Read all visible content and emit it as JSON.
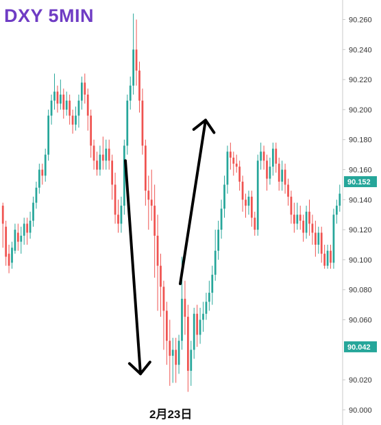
{
  "title": "DXY 5MIN",
  "date_label": "2月23日",
  "colors": {
    "up": "#26a69a",
    "down": "#ef5350",
    "title": "#6f3cc4",
    "badge": "#26a69a",
    "axis": "#c8c8c8",
    "arrow": "#000000"
  },
  "chart_data": {
    "type": "candlestick",
    "title": "DXY 5MIN",
    "xlabel": "2月23日",
    "ylabel": "",
    "ylim": [
      89.996,
      90.266
    ],
    "y_ticks": [
      "90.260",
      "90.240",
      "90.220",
      "90.200",
      "90.180",
      "90.160",
      "90.140",
      "90.120",
      "90.100",
      "90.080",
      "90.060",
      "90.020",
      "90.000"
    ],
    "price_badges": [
      {
        "label": "90.152",
        "value": 90.152
      },
      {
        "label": "90.042",
        "value": 90.042
      }
    ],
    "annotations": [
      {
        "type": "arrow",
        "direction": "down",
        "from": 90.166,
        "to": 90.024
      },
      {
        "type": "arrow",
        "direction": "up",
        "from": 90.084,
        "to": 90.193
      }
    ],
    "candles": [
      [
        90.136,
        90.124,
        90.138,
        90.108
      ],
      [
        90.122,
        90.102,
        90.126,
        90.096
      ],
      [
        90.104,
        90.096,
        90.11,
        90.091
      ],
      [
        90.098,
        90.108,
        90.112,
        90.094
      ],
      [
        90.106,
        90.12,
        90.124,
        90.104
      ],
      [
        90.118,
        90.112,
        90.124,
        90.106
      ],
      [
        90.112,
        90.116,
        90.122,
        90.104
      ],
      [
        90.116,
        90.124,
        90.128,
        90.11
      ],
      [
        90.124,
        90.118,
        90.128,
        90.11
      ],
      [
        90.118,
        90.126,
        90.132,
        90.114
      ],
      [
        90.126,
        90.138,
        90.142,
        90.122
      ],
      [
        90.138,
        90.148,
        90.152,
        90.134
      ],
      [
        90.148,
        90.16,
        90.164,
        90.144
      ],
      [
        90.16,
        90.156,
        90.164,
        90.15
      ],
      [
        90.156,
        90.17,
        90.174,
        90.152
      ],
      [
        90.17,
        90.196,
        90.2,
        90.166
      ],
      [
        90.196,
        90.206,
        90.21,
        90.19
      ],
      [
        90.206,
        90.212,
        90.224,
        90.2
      ],
      [
        90.212,
        90.204,
        90.216,
        90.198
      ],
      [
        90.204,
        90.21,
        90.22,
        90.2
      ],
      [
        90.21,
        90.2,
        90.214,
        90.194
      ],
      [
        90.2,
        90.206,
        90.212,
        90.196
      ],
      [
        90.206,
        90.196,
        90.21,
        90.19
      ],
      [
        90.196,
        90.19,
        90.2,
        90.184
      ],
      [
        90.19,
        90.196,
        90.202,
        90.186
      ],
      [
        90.196,
        90.206,
        90.21,
        90.188
      ],
      [
        90.206,
        90.218,
        90.222,
        90.2
      ],
      [
        90.218,
        90.21,
        90.224,
        90.204
      ],
      [
        90.21,
        90.196,
        90.214,
        90.186
      ],
      [
        90.196,
        90.176,
        90.2,
        90.168
      ],
      [
        90.176,
        90.166,
        90.18,
        90.16
      ],
      [
        90.166,
        90.16,
        90.172,
        90.156
      ],
      [
        90.16,
        90.17,
        90.176,
        90.156
      ],
      [
        90.17,
        90.166,
        90.182,
        90.16
      ],
      [
        90.166,
        90.174,
        90.18,
        90.16
      ],
      [
        90.174,
        90.166,
        90.18,
        90.16
      ],
      [
        90.166,
        90.15,
        90.17,
        90.14
      ],
      [
        90.15,
        90.13,
        90.158,
        90.124
      ],
      [
        90.13,
        90.124,
        90.14,
        90.118
      ],
      [
        90.124,
        90.136,
        90.142,
        90.118
      ],
      [
        90.136,
        90.176,
        90.18,
        90.13
      ],
      [
        90.176,
        90.206,
        90.21,
        90.17
      ],
      [
        90.206,
        90.216,
        90.222,
        90.2
      ],
      [
        90.216,
        90.24,
        90.264,
        90.21
      ],
      [
        90.24,
        90.226,
        90.26,
        90.216
      ],
      [
        90.226,
        90.206,
        90.232,
        90.198
      ],
      [
        90.206,
        90.176,
        90.214,
        90.17
      ],
      [
        90.176,
        90.146,
        90.18,
        90.136
      ],
      [
        90.146,
        90.14,
        90.156,
        90.12
      ],
      [
        90.14,
        90.136,
        90.16,
        90.126
      ],
      [
        90.136,
        90.116,
        90.15,
        90.088
      ],
      [
        90.116,
        90.096,
        90.13,
        90.066
      ],
      [
        90.096,
        90.082,
        90.104,
        90.062
      ],
      [
        90.082,
        90.066,
        90.086,
        90.04
      ],
      [
        90.066,
        90.046,
        90.072,
        90.03
      ],
      [
        90.046,
        90.036,
        90.06,
        90.016
      ],
      [
        90.036,
        90.04,
        90.048,
        90.018
      ],
      [
        90.04,
        90.03,
        90.048,
        90.018
      ],
      [
        90.03,
        90.046,
        90.05,
        90.024
      ],
      [
        90.046,
        90.074,
        90.102,
        90.04
      ],
      [
        90.074,
        90.062,
        90.086,
        90.05
      ],
      [
        90.062,
        90.026,
        90.07,
        90.012
      ],
      [
        90.026,
        90.04,
        90.046,
        90.016
      ],
      [
        90.04,
        90.064,
        90.068,
        90.034
      ],
      [
        90.064,
        90.05,
        90.07,
        90.042
      ],
      [
        90.05,
        90.06,
        90.068,
        90.044
      ],
      [
        90.06,
        90.064,
        90.072,
        90.052
      ],
      [
        90.064,
        90.072,
        90.078,
        90.06
      ],
      [
        90.072,
        90.078,
        90.086,
        90.066
      ],
      [
        90.078,
        90.09,
        90.096,
        90.07
      ],
      [
        90.09,
        90.106,
        90.12,
        90.086
      ],
      [
        90.106,
        90.12,
        90.126,
        90.1
      ],
      [
        90.12,
        90.134,
        90.14,
        90.114
      ],
      [
        90.134,
        90.15,
        90.156,
        90.128
      ],
      [
        90.15,
        90.172,
        90.176,
        90.144
      ],
      [
        90.172,
        90.168,
        90.178,
        90.16
      ],
      [
        90.168,
        90.164,
        90.172,
        90.156
      ],
      [
        90.164,
        90.162,
        90.17,
        90.158
      ],
      [
        90.162,
        90.152,
        90.166,
        90.146
      ],
      [
        90.152,
        90.14,
        90.156,
        90.132
      ],
      [
        90.14,
        90.136,
        90.144,
        90.128
      ],
      [
        90.136,
        90.142,
        90.146,
        90.13
      ],
      [
        90.142,
        90.128,
        90.146,
        90.122
      ],
      [
        90.128,
        90.12,
        90.132,
        90.116
      ],
      [
        90.12,
        90.166,
        90.17,
        90.116
      ],
      [
        90.166,
        90.172,
        90.178,
        90.16
      ],
      [
        90.172,
        90.166,
        90.176,
        90.16
      ],
      [
        90.166,
        90.154,
        90.17,
        90.146
      ],
      [
        90.154,
        90.162,
        90.168,
        90.15
      ],
      [
        90.162,
        90.174,
        90.178,
        90.156
      ],
      [
        90.174,
        90.164,
        90.178,
        90.158
      ],
      [
        90.164,
        90.152,
        90.168,
        90.146
      ],
      [
        90.152,
        90.16,
        90.166,
        90.146
      ],
      [
        90.16,
        90.15,
        90.164,
        90.144
      ],
      [
        90.15,
        90.142,
        90.154,
        90.136
      ],
      [
        90.142,
        90.13,
        90.146,
        90.124
      ],
      [
        90.13,
        90.124,
        90.138,
        90.118
      ],
      [
        90.124,
        90.13,
        90.138,
        90.12
      ],
      [
        90.13,
        90.126,
        90.136,
        90.12
      ],
      [
        90.126,
        90.118,
        90.13,
        90.112
      ],
      [
        90.118,
        90.132,
        90.136,
        90.114
      ],
      [
        90.132,
        90.124,
        90.14,
        90.116
      ],
      [
        90.124,
        90.118,
        90.13,
        90.11
      ],
      [
        90.118,
        90.11,
        90.126,
        90.102
      ],
      [
        90.11,
        90.118,
        90.122,
        90.104
      ],
      [
        90.118,
        90.104,
        90.122,
        90.098
      ],
      [
        90.104,
        90.096,
        90.11,
        90.094
      ],
      [
        90.096,
        90.106,
        90.11,
        90.094
      ],
      [
        90.106,
        90.098,
        90.11,
        90.094
      ],
      [
        90.098,
        90.13,
        90.134,
        90.094
      ],
      [
        90.13,
        90.136,
        90.14,
        90.124
      ],
      [
        90.136,
        90.144,
        90.15,
        90.132
      ]
    ]
  }
}
